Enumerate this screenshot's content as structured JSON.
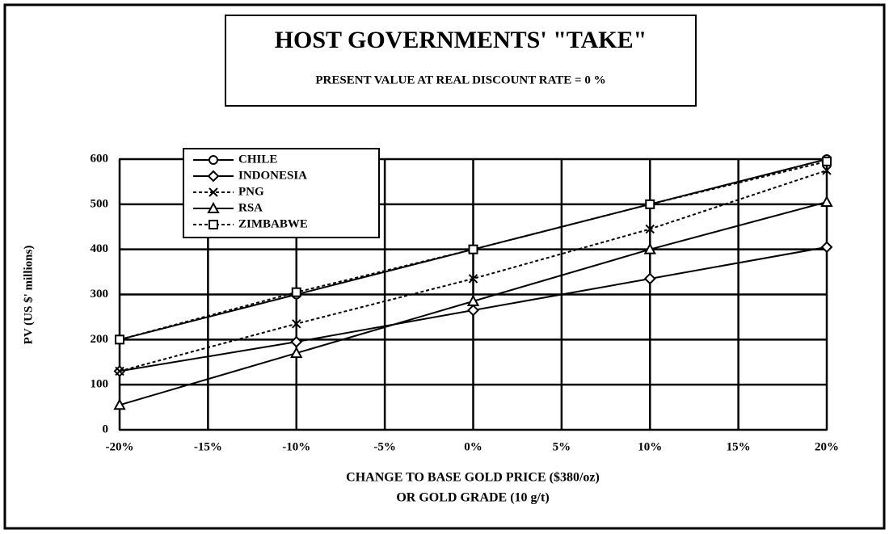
{
  "chart_data": {
    "type": "line",
    "title": "HOST GOVERNMENTS' \"TAKE\"",
    "subtitle": "PRESENT VALUE AT REAL DISCOUNT RATE = 0 %",
    "ylabel": "PV (US $' millions)",
    "xlabel": [
      "CHANGE TO BASE GOLD PRICE ($380/oz)",
      "OR GOLD GRADE (10 g/t)"
    ],
    "x": [
      -20,
      -10,
      0,
      10,
      20
    ],
    "series": [
      {
        "name": "CHILE",
        "color": "#000000",
        "marker": "circle",
        "line_style": "solid",
        "values": [
          200,
          300,
          400,
          500,
          600
        ]
      },
      {
        "name": "INDONESIA",
        "color": "#000000",
        "marker": "diamond",
        "line_style": "solid",
        "values": [
          130,
          195,
          265,
          335,
          405
        ]
      },
      {
        "name": "PNG",
        "color": "#000000",
        "marker": "x",
        "line_style": "dashed",
        "values": [
          130,
          235,
          335,
          445,
          575
        ]
      },
      {
        "name": "RSA",
        "color": "#000000",
        "marker": "triangle",
        "line_style": "solid",
        "values": [
          55,
          170,
          285,
          400,
          505
        ]
      },
      {
        "name": "ZIMBABWE",
        "color": "#000000",
        "marker": "square",
        "line_style": "dashed",
        "values": [
          200,
          305,
          400,
          500,
          595
        ]
      }
    ],
    "xlim": [
      -20,
      20
    ],
    "xticks": [
      {
        "value": -20,
        "label": "-20%"
      },
      {
        "value": -15,
        "label": "-15%"
      },
      {
        "value": -10,
        "label": "-10%"
      },
      {
        "value": -5,
        "label": "-5%"
      },
      {
        "value": 0,
        "label": "0%"
      },
      {
        "value": 5,
        "label": "5%"
      },
      {
        "value": 10,
        "label": "10%"
      },
      {
        "value": 15,
        "label": "15%"
      },
      {
        "value": 20,
        "label": "20%"
      }
    ],
    "ylim": [
      0,
      600
    ],
    "yticks": [
      0,
      100,
      200,
      300,
      400,
      500,
      600
    ],
    "grid": true,
    "legend": "upper left"
  }
}
